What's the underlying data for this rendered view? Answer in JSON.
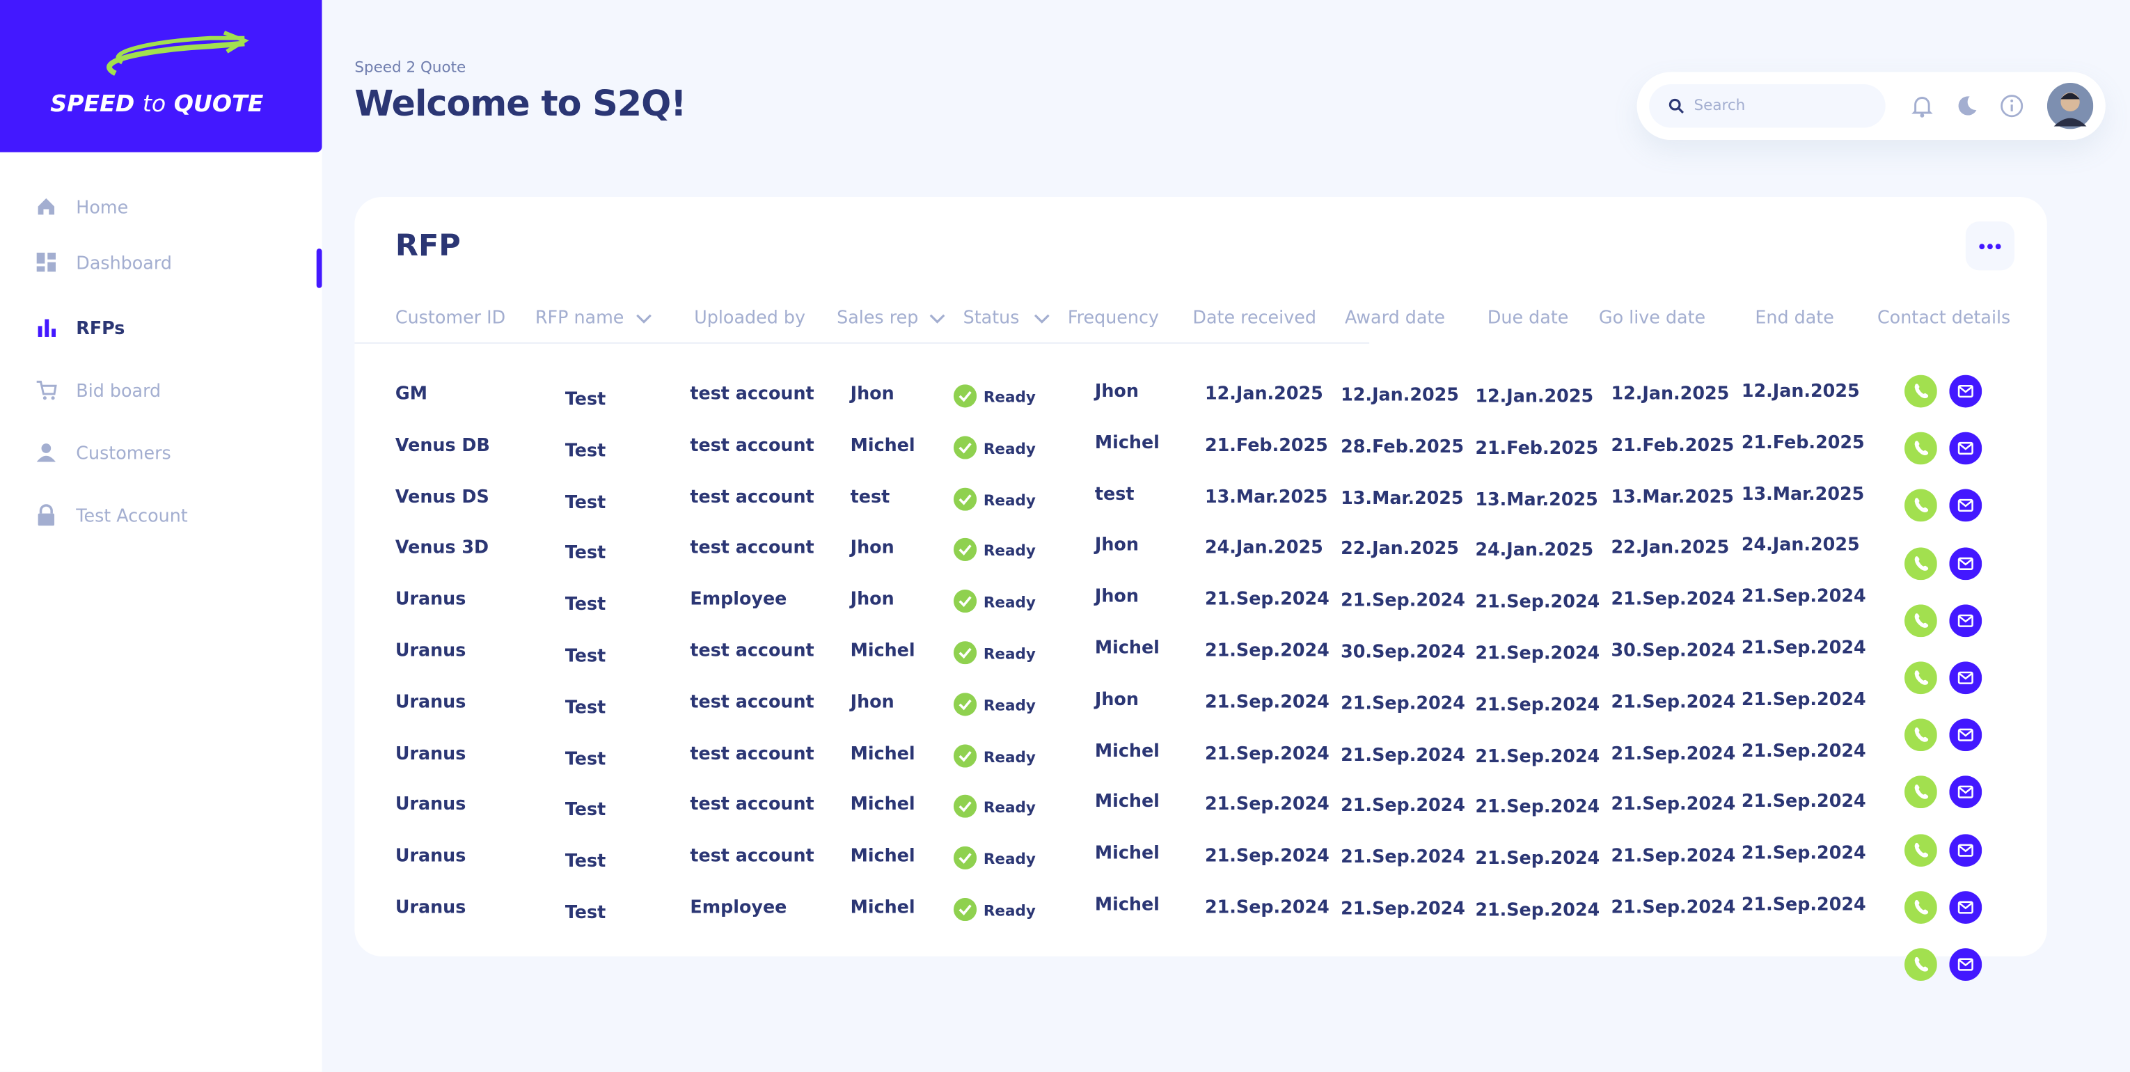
{
  "logo": {
    "speed": "SPEED",
    "to": "to",
    "quote": "QUOTE"
  },
  "nav": [
    "Home",
    "Dashboard",
    "RFPs",
    "Bid board",
    "Customers",
    "Test Account"
  ],
  "header": {
    "breadcrumb": "Speed 2 Quote",
    "title": "Welcome to S2Q!",
    "search_placeholder": "Search"
  },
  "card": {
    "title": "RFP"
  },
  "table": {
    "columns": [
      "Customer ID",
      "RFP name",
      "Uploaded by",
      "Sales rep",
      "Status",
      "Frequency",
      "Date received",
      "Award date",
      "Due date",
      "Go live date",
      "End date",
      "Contact details"
    ],
    "rows": [
      [
        "GM",
        "Test",
        "test account",
        "Jhon",
        "Ready",
        "Jhon",
        "12.Jan.2025",
        "12.Jan.2025",
        "12.Jan.2025",
        "12.Jan.2025",
        "12.Jan.2025"
      ],
      [
        "Venus DB",
        "Test",
        "test account",
        "Michel",
        "Ready",
        "Michel",
        "21.Feb.2025",
        "28.Feb.2025",
        "21.Feb.2025",
        "21.Feb.2025",
        "21.Feb.2025"
      ],
      [
        "Venus DS",
        "Test",
        "test account",
        "test",
        "Ready",
        "test",
        "13.Mar.2025",
        "13.Mar.2025",
        "13.Mar.2025",
        "13.Mar.2025",
        "13.Mar.2025"
      ],
      [
        "Venus 3D",
        "Test",
        "test account",
        "Jhon",
        "Ready",
        "Jhon",
        "24.Jan.2025",
        "22.Jan.2025",
        "24.Jan.2025",
        "22.Jan.2025",
        "24.Jan.2025"
      ],
      [
        "Uranus",
        "Test",
        "Employee",
        "Jhon",
        "Ready",
        "Jhon",
        "21.Sep.2024",
        "21.Sep.2024",
        "21.Sep.2024",
        "21.Sep.2024",
        "21.Sep.2024"
      ],
      [
        "Uranus",
        "Test",
        "test account",
        "Michel",
        "Ready",
        "Michel",
        "21.Sep.2024",
        "30.Sep.2024",
        "21.Sep.2024",
        "30.Sep.2024",
        "21.Sep.2024"
      ],
      [
        "Uranus",
        "Test",
        "test account",
        "Jhon",
        "Ready",
        "Jhon",
        "21.Sep.2024",
        "21.Sep.2024",
        "21.Sep.2024",
        "21.Sep.2024",
        "21.Sep.2024"
      ],
      [
        "Uranus",
        "Test",
        "test account",
        "Michel",
        "Ready",
        "Michel",
        "21.Sep.2024",
        "21.Sep.2024",
        "21.Sep.2024",
        "21.Sep.2024",
        "21.Sep.2024"
      ],
      [
        "Uranus",
        "Test",
        "test account",
        "Michel",
        "Ready",
        "Michel",
        "21.Sep.2024",
        "21.Sep.2024",
        "21.Sep.2024",
        "21.Sep.2024",
        "21.Sep.2024"
      ],
      [
        "Uranus",
        "Test",
        "test account",
        "Michel",
        "Ready",
        "Michel",
        "21.Sep.2024",
        "21.Sep.2024",
        "21.Sep.2024",
        "21.Sep.2024",
        "21.Sep.2024"
      ],
      [
        "Uranus",
        "Test",
        "Employee",
        "Michel",
        "Ready",
        "Michel",
        "21.Sep.2024",
        "21.Sep.2024",
        "21.Sep.2024",
        "21.Sep.2024",
        "21.Sep.2024"
      ]
    ]
  }
}
